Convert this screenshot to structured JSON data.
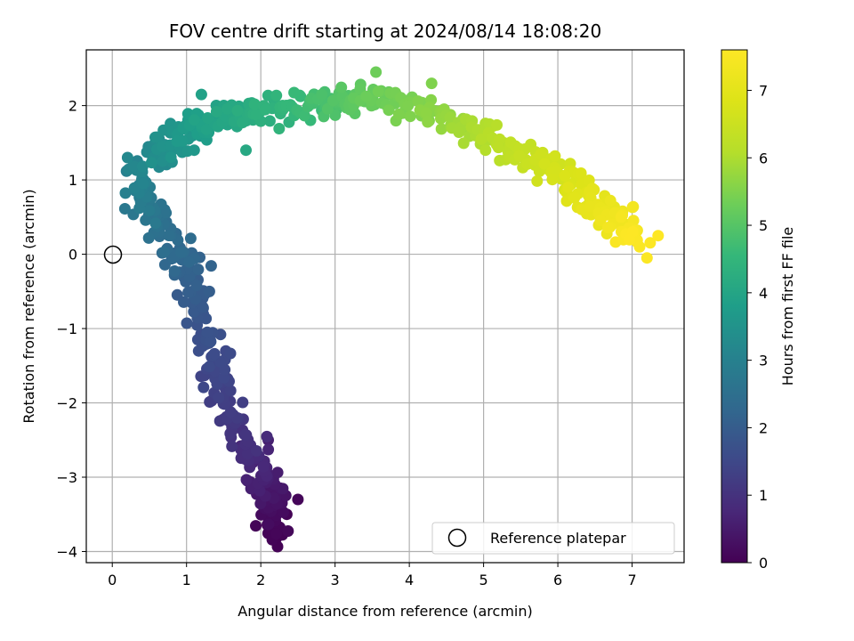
{
  "chart_data": {
    "type": "scatter",
    "title": "FOV centre drift starting at 2024/08/14 18:08:20",
    "xlabel": "Angular distance from reference (arcmin)",
    "ylabel": "Rotation from reference (arcmin)",
    "xlim": [
      -0.35,
      7.7
    ],
    "ylim": [
      -4.15,
      2.75
    ],
    "xticks": [
      0,
      1,
      2,
      3,
      4,
      5,
      6,
      7
    ],
    "xtick_labels": [
      "0",
      "1",
      "2",
      "3",
      "4",
      "5",
      "6",
      "7"
    ],
    "yticks": [
      -4,
      -3,
      -2,
      -1,
      0,
      1,
      2
    ],
    "ytick_labels": [
      "−4",
      "−3",
      "−2",
      "−1",
      "0",
      "1",
      "2"
    ],
    "grid": true,
    "colormap": "viridis",
    "colorbar": {
      "label": "Hours from first FF file",
      "range": [
        0,
        7.6
      ],
      "ticks": [
        0,
        1,
        2,
        3,
        4,
        5,
        6,
        7
      ],
      "tick_labels": [
        "0",
        "1",
        "2",
        "3",
        "4",
        "5",
        "6",
        "7"
      ]
    },
    "legend": {
      "position": "lower-right",
      "entries": [
        {
          "label": "Reference platepar",
          "marker": "open-circle"
        }
      ]
    },
    "reference_point": {
      "x": 0,
      "y": 0
    },
    "path": [
      {
        "x": 2.2,
        "y": -3.8,
        "h": 0.0
      },
      {
        "x": 2.15,
        "y": -3.2,
        "h": 0.4
      },
      {
        "x": 1.95,
        "y": -2.9,
        "h": 0.7
      },
      {
        "x": 1.75,
        "y": -2.5,
        "h": 1.0
      },
      {
        "x": 1.55,
        "y": -2.0,
        "h": 1.25
      },
      {
        "x": 1.4,
        "y": -1.5,
        "h": 1.5
      },
      {
        "x": 1.25,
        "y": -1.0,
        "h": 1.75
      },
      {
        "x": 1.1,
        "y": -0.5,
        "h": 2.0
      },
      {
        "x": 0.9,
        "y": 0.0,
        "h": 2.3
      },
      {
        "x": 0.65,
        "y": 0.4,
        "h": 2.55
      },
      {
        "x": 0.35,
        "y": 0.8,
        "h": 2.85
      },
      {
        "x": 0.45,
        "y": 1.2,
        "h": 3.15
      },
      {
        "x": 0.8,
        "y": 1.5,
        "h": 3.5
      },
      {
        "x": 1.2,
        "y": 1.75,
        "h": 3.85
      },
      {
        "x": 1.7,
        "y": 1.9,
        "h": 4.15
      },
      {
        "x": 2.3,
        "y": 1.95,
        "h": 4.5
      },
      {
        "x": 2.8,
        "y": 2.05,
        "h": 4.8
      },
      {
        "x": 3.3,
        "y": 2.1,
        "h": 5.1
      },
      {
        "x": 3.9,
        "y": 2.05,
        "h": 5.4
      },
      {
        "x": 4.5,
        "y": 1.8,
        "h": 5.75
      },
      {
        "x": 5.0,
        "y": 1.6,
        "h": 6.05
      },
      {
        "x": 5.5,
        "y": 1.35,
        "h": 6.35
      },
      {
        "x": 6.0,
        "y": 1.1,
        "h": 6.65
      },
      {
        "x": 6.4,
        "y": 0.8,
        "h": 6.95
      },
      {
        "x": 6.8,
        "y": 0.45,
        "h": 7.3
      },
      {
        "x": 7.1,
        "y": 0.2,
        "h": 7.6
      }
    ],
    "outliers": [
      {
        "x": 2.5,
        "y": -3.3,
        "h": 0.1
      },
      {
        "x": 2.35,
        "y": -3.5,
        "h": 0.05
      },
      {
        "x": 2.1,
        "y": -2.5,
        "h": 0.6
      },
      {
        "x": 1.2,
        "y": 2.15,
        "h": 3.9
      },
      {
        "x": 4.3,
        "y": 2.3,
        "h": 5.5
      },
      {
        "x": 3.55,
        "y": 2.45,
        "h": 5.3
      },
      {
        "x": 7.35,
        "y": 0.25,
        "h": 7.6
      },
      {
        "x": 7.2,
        "y": -0.05,
        "h": 7.55
      },
      {
        "x": 1.8,
        "y": 1.4,
        "h": 4.1
      }
    ]
  }
}
